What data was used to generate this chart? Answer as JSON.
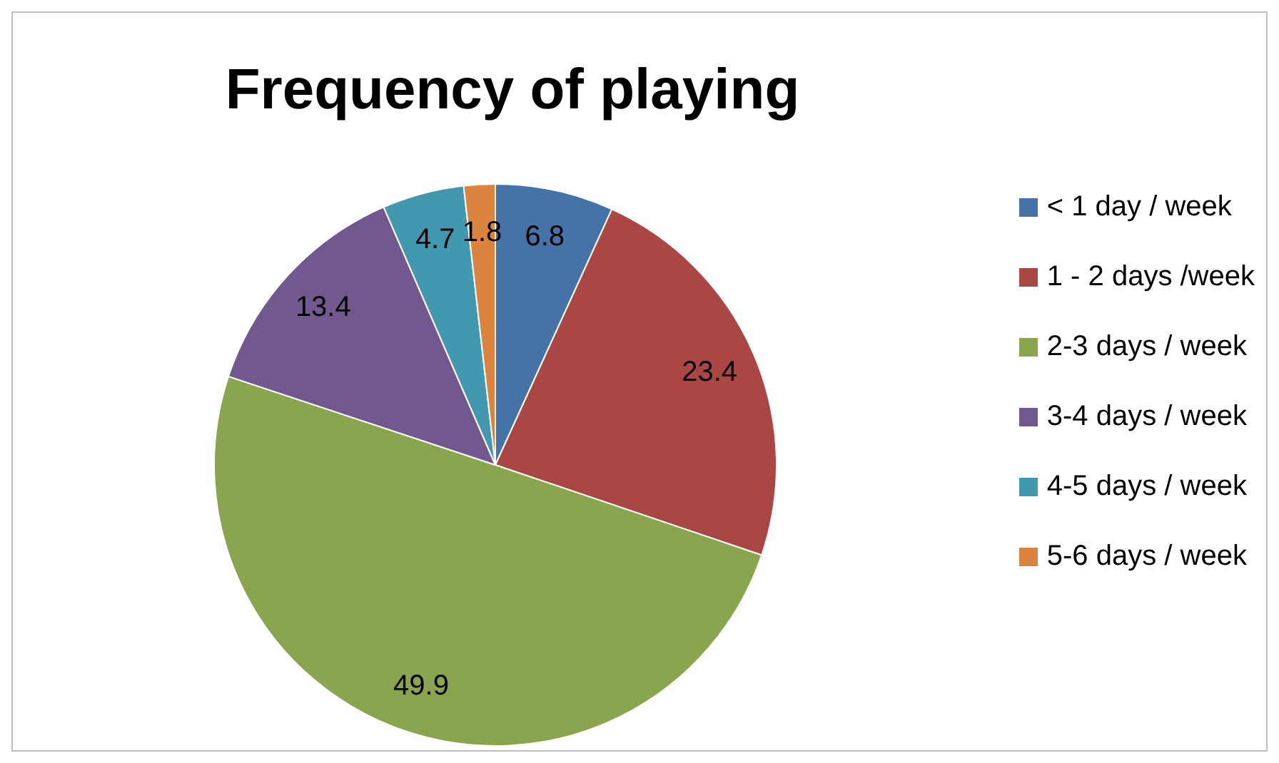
{
  "chart_data": {
    "type": "pie",
    "title": "Frequency of playing",
    "categories": [
      "< 1 day / week",
      "1 - 2 days /week",
      "2-3 days / week",
      "3-4 days / week",
      "4-5 days / week",
      "5-6 days / week"
    ],
    "values": [
      6.8,
      23.4,
      49.9,
      13.4,
      4.7,
      1.8
    ],
    "colors": [
      "#4572a7",
      "#aa4643",
      "#89a54e",
      "#71588f",
      "#4198af",
      "#db843d"
    ],
    "data_labels": true,
    "legend": "right"
  }
}
